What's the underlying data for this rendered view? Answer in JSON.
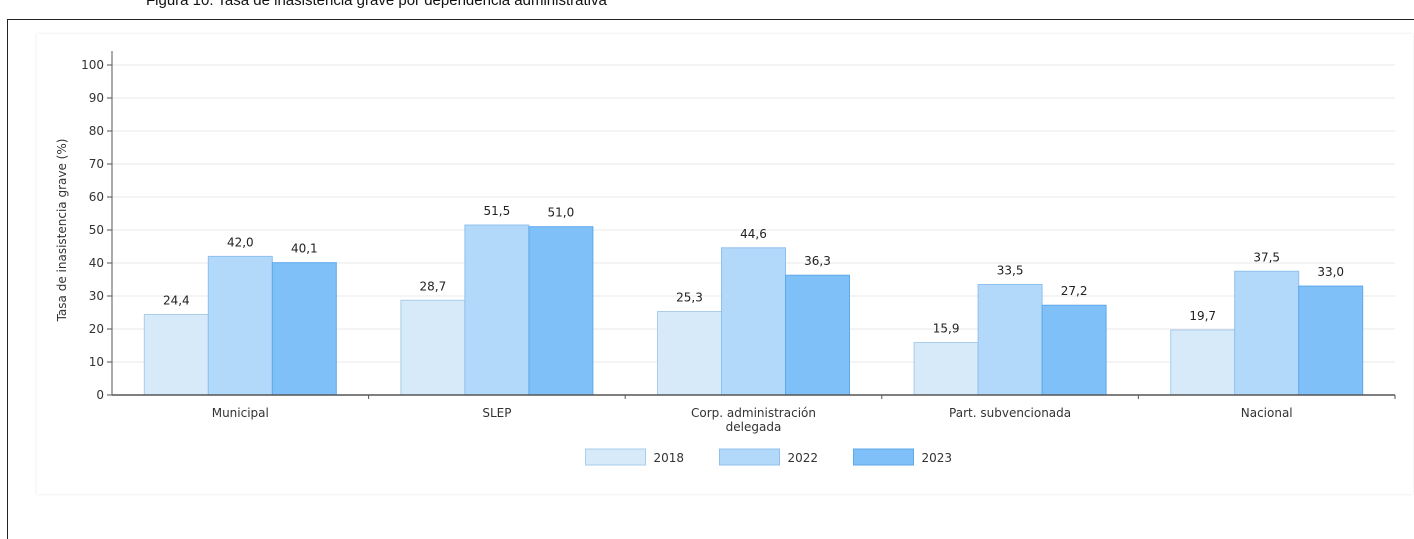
{
  "caption": "Figura 10. Tasa de inasistencia grave por dependencia administrativa",
  "colors": {
    "series": [
      "#d6eafa",
      "#b3d9fa",
      "#80c0f8"
    ],
    "stroke": [
      "#a9cdea",
      "#8fc1ee",
      "#5ea9ea"
    ],
    "grid": "#e8e8e8",
    "axis": "#555555"
  },
  "chart_data": {
    "type": "bar",
    "title": "",
    "xlabel": "",
    "ylabel": "Tasa de inasistencia grave (%)",
    "ylim": [
      0,
      100
    ],
    "yticks": [
      0,
      10,
      20,
      30,
      40,
      50,
      60,
      70,
      80,
      90,
      100
    ],
    "grid": true,
    "legend_position": "bottom",
    "categories": [
      "Municipal",
      "SLEP",
      "Corp. administración delegada",
      "Part. subvencionada",
      "Nacional"
    ],
    "category_lines": [
      [
        "Municipal"
      ],
      [
        "SLEP"
      ],
      [
        "Corp. administración",
        "delegada"
      ],
      [
        "Part. subvencionada"
      ],
      [
        "Nacional"
      ]
    ],
    "series": [
      {
        "name": "2018",
        "values": [
          24.4,
          28.7,
          25.3,
          15.9,
          19.7
        ],
        "labels": [
          "24,4",
          "28,7",
          "25,3",
          "15,9",
          "19,7"
        ]
      },
      {
        "name": "2022",
        "values": [
          42.0,
          51.5,
          44.6,
          33.5,
          37.5
        ],
        "labels": [
          "42,0",
          "51,5",
          "44,6",
          "33,5",
          "37,5"
        ]
      },
      {
        "name": "2023",
        "values": [
          40.1,
          51.0,
          36.3,
          27.2,
          33.0
        ],
        "labels": [
          "40,1",
          "51,0",
          "36,3",
          "27,2",
          "33,0"
        ]
      }
    ]
  }
}
